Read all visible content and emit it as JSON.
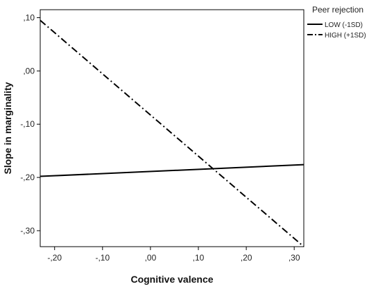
{
  "chart_data": {
    "type": "line",
    "xlabel": "Cognitive valence",
    "ylabel": "Slope in marginality",
    "xlim": [
      -0.23,
      0.32
    ],
    "ylim": [
      -0.33,
      0.115
    ],
    "xticks": [
      -0.2,
      -0.1,
      0.0,
      0.1,
      0.2,
      0.3
    ],
    "xtick_labels": [
      "-,20",
      "-,10",
      ",00",
      ",10",
      ",20",
      ",30"
    ],
    "yticks": [
      0.1,
      0.0,
      -0.1,
      -0.2,
      -0.3
    ],
    "ytick_labels": [
      ",10",
      ",00",
      "-,10",
      "-,20",
      "-,30"
    ],
    "grid": false,
    "legend": {
      "title": "Peer rejection",
      "placement": "outside-right-top"
    },
    "series": [
      {
        "name": "LOW (-1SD)",
        "style": "solid",
        "color": "#000000",
        "x": [
          -0.23,
          0.32
        ],
        "y": [
          -0.198,
          -0.176
        ]
      },
      {
        "name": "HIGH (+1SD)",
        "style": "dashdot",
        "color": "#000000",
        "x": [
          -0.23,
          0.32
        ],
        "y": [
          0.095,
          -0.33
        ]
      }
    ]
  }
}
